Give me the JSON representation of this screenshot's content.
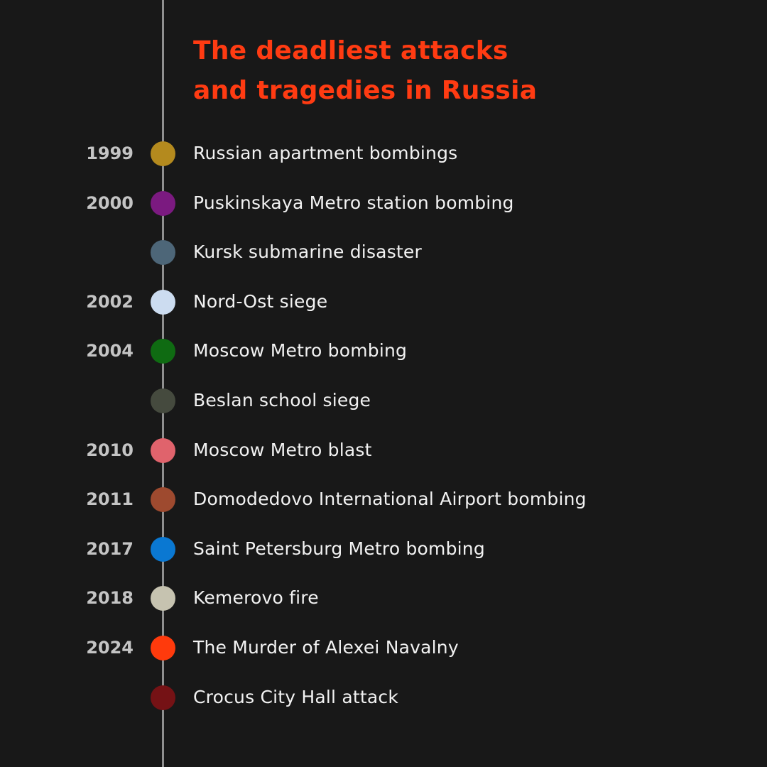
{
  "title": {
    "line1": "The deadliest attacks",
    "line2": "and tragedies in Russia"
  },
  "colors": {
    "background": "#181818",
    "axis": "#8f8f8f",
    "title": "#ff3b12",
    "year": "#c4c4c4",
    "label": "#f2f2f2"
  },
  "events": [
    {
      "year": "1999",
      "label": "Russian apartment bombings",
      "color": "#b48a1e"
    },
    {
      "year": "2000",
      "label": "Puskinskaya Metro station bombing",
      "color": "#7b1a80"
    },
    {
      "year": "",
      "label": "Kursk submarine disaster",
      "color": "#4d6678"
    },
    {
      "year": "2002",
      "label": "Nord-Ost siege",
      "color": "#ccdcf0"
    },
    {
      "year": "2004",
      "label": "Moscow Metro bombing",
      "color": "#0f6b12"
    },
    {
      "year": "",
      "label": "Beslan school siege",
      "color": "#454a3e"
    },
    {
      "year": "2010",
      "label": "Moscow Metro blast",
      "color": "#e0636c"
    },
    {
      "year": "2011",
      "label": "Domodedovo International Airport bombing",
      "color": "#9e4a2f"
    },
    {
      "year": "2017",
      "label": "Saint Petersburg Metro bombing",
      "color": "#0a78d2"
    },
    {
      "year": "2018",
      "label": "Kemerovo fire",
      "color": "#c6c3b0"
    },
    {
      "year": "2024",
      "label": "The Murder of Alexei Navalny",
      "color": "#ff3a0c"
    },
    {
      "year": "",
      "label": "Crocus City Hall attack",
      "color": "#751215"
    }
  ]
}
